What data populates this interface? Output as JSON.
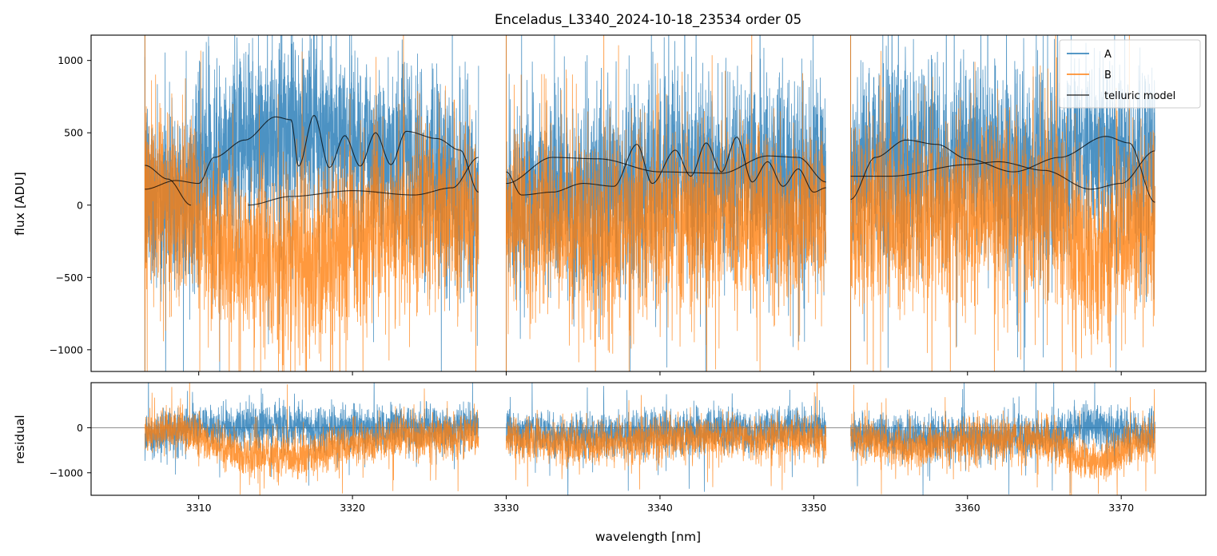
{
  "chart_data": {
    "type": "line",
    "title": "Enceladus_L3340_2024-10-18_23534  order 05",
    "xlabel": "wavelength [nm]",
    "xlim": [
      3303,
      3375.5
    ],
    "x_ticks": [
      3310,
      3320,
      3330,
      3340,
      3350,
      3360,
      3370
    ],
    "colors": {
      "A": "#1f77b4",
      "B": "#ff7f0e",
      "model": "#000000"
    },
    "legend": {
      "position": "top-right",
      "entries": [
        "A",
        "B",
        "telluric model"
      ]
    },
    "segments": [
      [
        3306.5,
        3328.2
      ],
      [
        3330.0,
        3350.8
      ],
      [
        3352.4,
        3372.2
      ]
    ],
    "panels": [
      {
        "id": "flux",
        "ylabel": "flux [ADU]",
        "ylim": [
          -1150,
          1175
        ],
        "y_ticks": [
          1000,
          500,
          0,
          -500,
          -1000
        ],
        "y_tick_labels": [
          "1000",
          "500",
          "0",
          "−500",
          "−1000"
        ],
        "series": [
          {
            "name": "A",
            "noise": 340,
            "baseline": [
              [
                3306.5,
                80
              ],
              [
                3309,
                60
              ],
              [
                3311,
                300
              ],
              [
                3314,
                470
              ],
              [
                3317,
                520
              ],
              [
                3320,
                440
              ],
              [
                3323,
                330
              ],
              [
                3326,
                150
              ],
              [
                3328.2,
                60
              ],
              [
                3330,
                60
              ],
              [
                3335,
                60
              ],
              [
                3340,
                180
              ],
              [
                3345,
                230
              ],
              [
                3350.8,
                160
              ],
              [
                3352.4,
                200
              ],
              [
                3356,
                360
              ],
              [
                3360,
                300
              ],
              [
                3365,
                200
              ],
              [
                3368,
                420
              ],
              [
                3372.2,
                250
              ]
            ]
          },
          {
            "name": "B",
            "noise": 320,
            "baseline": [
              [
                3306.5,
                80
              ],
              [
                3309,
                0
              ],
              [
                3311,
                -300
              ],
              [
                3314,
                -380
              ],
              [
                3317,
                -420
              ],
              [
                3320,
                -250
              ],
              [
                3323,
                -100
              ],
              [
                3326,
                -80
              ],
              [
                3328.2,
                -50
              ],
              [
                3330,
                -60
              ],
              [
                3333,
                -120
              ],
              [
                3336,
                -200
              ],
              [
                3340,
                -120
              ],
              [
                3345,
                -80
              ],
              [
                3350.8,
                -100
              ],
              [
                3352.4,
                -60
              ],
              [
                3356,
                -100
              ],
              [
                3360,
                -40
              ],
              [
                3365,
                -60
              ],
              [
                3368,
                -300
              ],
              [
                3372.2,
                -120
              ]
            ]
          }
        ],
        "model_lines": [
          [
            [
              3306.5,
              110
            ],
            [
              3308.5,
              170
            ],
            [
              3310,
              150
            ],
            [
              3311,
              330
            ],
            [
              3313,
              450
            ],
            [
              3315,
              610
            ],
            [
              3316,
              590
            ],
            [
              3316.5,
              270
            ],
            [
              3317.5,
              620
            ],
            [
              3318.5,
              260
            ],
            [
              3319.5,
              480
            ],
            [
              3320.5,
              270
            ],
            [
              3321.5,
              500
            ],
            [
              3322.5,
              280
            ],
            [
              3323.5,
              510
            ],
            [
              3325.5,
              460
            ],
            [
              3327,
              380
            ],
            [
              3328.2,
              90
            ]
          ],
          [
            [
              3306.5,
              275
            ],
            [
              3308,
              180
            ],
            [
              3309.5,
              0
            ]
          ],
          [
            [
              3313.2,
              0
            ],
            [
              3316,
              60
            ],
            [
              3320,
              100
            ],
            [
              3324,
              70
            ],
            [
              3326.5,
              120
            ],
            [
              3328.2,
              330
            ]
          ],
          [
            [
              3330,
              150
            ],
            [
              3333,
              330
            ],
            [
              3336,
              320
            ],
            [
              3340,
              230
            ],
            [
              3344,
              220
            ],
            [
              3347,
              340
            ],
            [
              3349,
              330
            ],
            [
              3350.8,
              160
            ]
          ],
          [
            [
              3330,
              230
            ],
            [
              3331,
              70
            ],
            [
              3333,
              90
            ],
            [
              3335,
              150
            ],
            [
              3337,
              130
            ],
            [
              3338.5,
              420
            ],
            [
              3339.5,
              150
            ],
            [
              3341,
              380
            ],
            [
              3342,
              200
            ],
            [
              3343,
              430
            ],
            [
              3344,
              230
            ],
            [
              3345,
              470
            ],
            [
              3346,
              160
            ],
            [
              3347,
              300
            ],
            [
              3348,
              130
            ],
            [
              3349,
              250
            ],
            [
              3350,
              90
            ],
            [
              3350.8,
              120
            ]
          ],
          [
            [
              3352.4,
              200
            ],
            [
              3355,
              200
            ],
            [
              3360,
              280
            ],
            [
              3362,
              300
            ],
            [
              3365,
              240
            ],
            [
              3368,
              110
            ],
            [
              3370,
              150
            ],
            [
              3372.2,
              375
            ]
          ],
          [
            [
              3352.4,
              40
            ],
            [
              3354,
              330
            ],
            [
              3356,
              450
            ],
            [
              3358,
              420
            ],
            [
              3360,
              320
            ],
            [
              3363,
              230
            ],
            [
              3366,
              330
            ],
            [
              3369,
              475
            ],
            [
              3370.5,
              430
            ],
            [
              3372.2,
              20
            ]
          ]
        ]
      },
      {
        "id": "residual",
        "ylabel": "residual",
        "ylim": [
          -1500,
          1000
        ],
        "y_ticks": [
          0,
          -1000
        ],
        "y_tick_labels": [
          "0",
          "−1000"
        ],
        "series": [
          {
            "name": "A",
            "noise": 240,
            "baseline": [
              [
                3306.5,
                -200
              ],
              [
                3310,
                0
              ],
              [
                3314,
                50
              ],
              [
                3320,
                0
              ],
              [
                3325,
                0
              ],
              [
                3328.2,
                0
              ],
              [
                3330,
                -100
              ],
              [
                3335,
                -150
              ],
              [
                3340,
                -100
              ],
              [
                3345,
                -50
              ],
              [
                3350.8,
                -50
              ],
              [
                3352.4,
                -150
              ],
              [
                3356,
                -200
              ],
              [
                3360,
                -200
              ],
              [
                3365,
                -150
              ],
              [
                3368,
                50
              ],
              [
                3372.2,
                -150
              ]
            ]
          },
          {
            "name": "B",
            "noise": 240,
            "baseline": [
              [
                3306.5,
                -100
              ],
              [
                3309,
                0
              ],
              [
                3311,
                -350
              ],
              [
                3313,
                -650
              ],
              [
                3317,
                -650
              ],
              [
                3320,
                -400
              ],
              [
                3323,
                -200
              ],
              [
                3328.2,
                -200
              ],
              [
                3330,
                -250
              ],
              [
                3333,
                -350
              ],
              [
                3336,
                -350
              ],
              [
                3340,
                -250
              ],
              [
                3345,
                -200
              ],
              [
                3350.8,
                -250
              ],
              [
                3352.4,
                -250
              ],
              [
                3356,
                -450
              ],
              [
                3360,
                -300
              ],
              [
                3365,
                -300
              ],
              [
                3368,
                -750
              ],
              [
                3372.2,
                -300
              ]
            ]
          }
        ],
        "zero_line": 0
      }
    ]
  }
}
